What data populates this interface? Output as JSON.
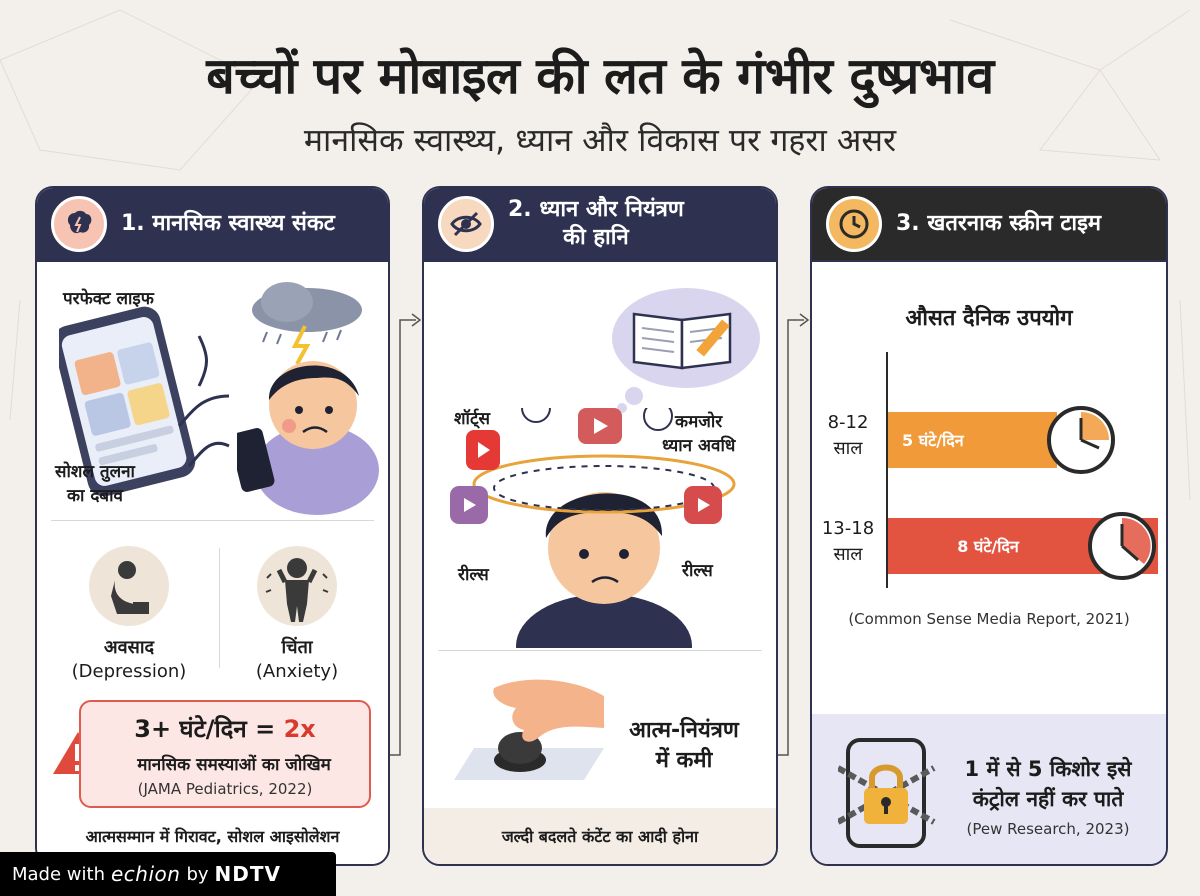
{
  "header": {
    "title": "बच्चों पर मोबाइल की लत के गंभीर दुष्प्रभाव",
    "subtitle": "मानसिक स्वास्थ्य, ध्यान और विकास पर गहरा असर"
  },
  "card1": {
    "title": "1. मानसिक स्वास्थ्य संकट",
    "perfect_life": "परफेक्ट लाइफ",
    "social_pressure_line1": "सोशल तुलना",
    "social_pressure_line2": "का दबाव",
    "depression_hi": "अवसाद",
    "depression_en": "(Depression)",
    "anxiety_hi": "चिंता",
    "anxiety_en": "(Anxiety)",
    "risk_main_prefix": "3+ घंटे/दिन = ",
    "risk_main_highlight": "2x",
    "risk_sub": "मानसिक समस्याओं का जोखिम",
    "risk_source": "(JAMA Pediatrics, 2022)",
    "footer": "आत्मसम्मान में गिरावट, सोशल आइसोलेशन"
  },
  "card2": {
    "title_line1": "2. ध्यान और नियंत्रण",
    "title_line2": "की हानि",
    "shorts": "शॉर्ट्स",
    "weak_line1": "कमजोर",
    "weak_line2": "ध्यान अवधि",
    "reels_left": "रील्स",
    "reels_right": "रील्स",
    "self_control_line1": "आत्म-नियंत्रण",
    "self_control_line2": "में कमी",
    "footer": "जल्दी बदलते कंटेंट का आदी होना"
  },
  "card3": {
    "title": "3. खतरनाक स्क्रीन टाइम",
    "chart_title": "औसत दैनिक उपयोग",
    "source": "(Common Sense Media Report, 2021)",
    "lock_line1": "1 में से 5 किशोर इसे",
    "lock_line2": "कंट्रोल नहीं कर पाते",
    "lock_source": "(Pew Research, 2023)"
  },
  "chart_data": {
    "type": "bar",
    "title": "औसत दैनिक उपयोग",
    "categories": [
      "8-12 साल",
      "13-18 साल"
    ],
    "category_labels": [
      {
        "line1": "8-12",
        "line2": "साल"
      },
      {
        "line1": "13-18",
        "line2": "साल"
      }
    ],
    "values": [
      5,
      8
    ],
    "value_labels": [
      "5 घंटे/दिन",
      "8 घंटे/दिन"
    ],
    "unit": "घंटे/दिन",
    "orientation": "horizontal",
    "colors": [
      "#f19a3a",
      "#e25440"
    ]
  },
  "footer": {
    "made_with": "Made with",
    "brand": "echion",
    "by": "by",
    "network": "NDTV"
  },
  "colors": {
    "navy": "#2e3250",
    "orange": "#f19a3a",
    "red": "#e25440",
    "risk_pink": "#fde7e4"
  },
  "icons": [
    "brain-storm-icon",
    "eye-icon",
    "clock-icon",
    "warning-icon",
    "lock-icon",
    "phone-icon",
    "book-icon",
    "shorts-icon",
    "reels-icon"
  ]
}
